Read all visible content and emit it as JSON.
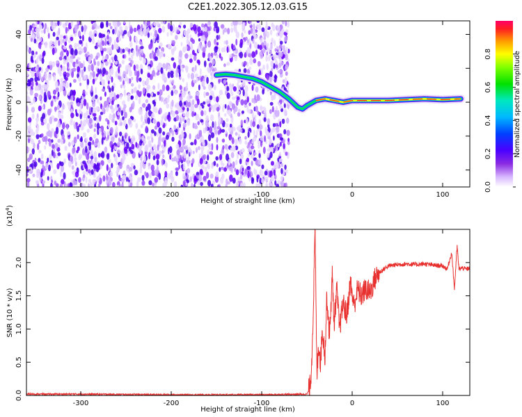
{
  "title": "C2E1.2022.305.12.03.G15",
  "colors": {
    "snr_line": "#e8302e",
    "axis": "#000000",
    "background": "#ffffff"
  },
  "chart_data": [
    {
      "type": "heatmap",
      "title": "C2E1.2022.305.12.03.G15",
      "xlabel": "Height of straight line (km)",
      "ylabel": "Frequency (Hz)",
      "xlim": [
        -360,
        130
      ],
      "ylim": [
        -50,
        48
      ],
      "xticks": [
        -300,
        -200,
        -100,
        0,
        100
      ],
      "yticks": [
        -40,
        -20,
        0,
        20,
        40
      ],
      "colorbar": {
        "label": "Normalized spectral amplitude",
        "range": [
          0.0,
          1.0
        ],
        "ticks": [
          0.0,
          0.2,
          0.4,
          0.6,
          0.8
        ],
        "colormap": "rainbow (white-violet-blue-cyan-green-yellow-red)"
      },
      "noise_region_x": [
        -360,
        -70
      ],
      "signal_trace": [
        {
          "x": -150,
          "y": 16
        },
        {
          "x": -140,
          "y": 16.5
        },
        {
          "x": -130,
          "y": 16
        },
        {
          "x": -120,
          "y": 15
        },
        {
          "x": -110,
          "y": 14
        },
        {
          "x": -100,
          "y": 12
        },
        {
          "x": -90,
          "y": 9
        },
        {
          "x": -80,
          "y": 6
        },
        {
          "x": -70,
          "y": 2
        },
        {
          "x": -60,
          "y": -3
        },
        {
          "x": -55,
          "y": -4
        },
        {
          "x": -50,
          "y": -2
        },
        {
          "x": -40,
          "y": 1
        },
        {
          "x": -30,
          "y": 2
        },
        {
          "x": -20,
          "y": 1
        },
        {
          "x": -10,
          "y": 0
        },
        {
          "x": 0,
          "y": 1
        },
        {
          "x": 20,
          "y": 1
        },
        {
          "x": 40,
          "y": 1
        },
        {
          "x": 60,
          "y": 1.5
        },
        {
          "x": 80,
          "y": 2
        },
        {
          "x": 100,
          "y": 1.5
        },
        {
          "x": 120,
          "y": 2
        }
      ]
    },
    {
      "type": "line",
      "xlabel": "Height of straight line (km)",
      "ylabel": "SNR (10 * v/v)",
      "y_multiplier_label": "(x10",
      "y_multiplier_exp": "4",
      "y_multiplier_close": ")",
      "xlim": [
        -360,
        130
      ],
      "ylim": [
        0,
        2.5
      ],
      "xticks": [
        -300,
        -200,
        -100,
        0,
        100
      ],
      "yticks": [
        0.0,
        0.5,
        1.0,
        1.5,
        2.0
      ],
      "series": [
        {
          "color": "#e8302e",
          "points": [
            {
              "x": -360,
              "y": 0.02
            },
            {
              "x": -300,
              "y": 0.02
            },
            {
              "x": -200,
              "y": 0.01
            },
            {
              "x": -100,
              "y": 0.01
            },
            {
              "x": -50,
              "y": 0.02
            },
            {
              "x": -47,
              "y": 0.1
            },
            {
              "x": -45,
              "y": 0.4
            },
            {
              "x": -43,
              "y": 1.3
            },
            {
              "x": -41,
              "y": 2.5
            },
            {
              "x": -39,
              "y": 0.3
            },
            {
              "x": -37,
              "y": 0.8
            },
            {
              "x": -35,
              "y": 0.5
            },
            {
              "x": -33,
              "y": 1.0
            },
            {
              "x": -30,
              "y": 0.6
            },
            {
              "x": -28,
              "y": 1.5
            },
            {
              "x": -25,
              "y": 0.9
            },
            {
              "x": -22,
              "y": 1.8
            },
            {
              "x": -20,
              "y": 1.1
            },
            {
              "x": -17,
              "y": 1.6
            },
            {
              "x": -14,
              "y": 1.0
            },
            {
              "x": -10,
              "y": 1.4
            },
            {
              "x": -6,
              "y": 1.2
            },
            {
              "x": -2,
              "y": 1.7
            },
            {
              "x": 2,
              "y": 1.35
            },
            {
              "x": 6,
              "y": 1.6
            },
            {
              "x": 10,
              "y": 1.5
            },
            {
              "x": 15,
              "y": 1.6
            },
            {
              "x": 20,
              "y": 1.55
            },
            {
              "x": 25,
              "y": 1.75
            },
            {
              "x": 30,
              "y": 1.85
            },
            {
              "x": 40,
              "y": 1.95
            },
            {
              "x": 50,
              "y": 1.97
            },
            {
              "x": 60,
              "y": 1.98
            },
            {
              "x": 70,
              "y": 1.97
            },
            {
              "x": 80,
              "y": 1.98
            },
            {
              "x": 90,
              "y": 1.96
            },
            {
              "x": 100,
              "y": 1.95
            },
            {
              "x": 105,
              "y": 1.9
            },
            {
              "x": 110,
              "y": 2.15
            },
            {
              "x": 113,
              "y": 1.6
            },
            {
              "x": 116,
              "y": 2.25
            },
            {
              "x": 118,
              "y": 1.9
            },
            {
              "x": 122,
              "y": 1.92
            },
            {
              "x": 126,
              "y": 1.9
            },
            {
              "x": 130,
              "y": 1.92
            }
          ]
        }
      ]
    }
  ]
}
